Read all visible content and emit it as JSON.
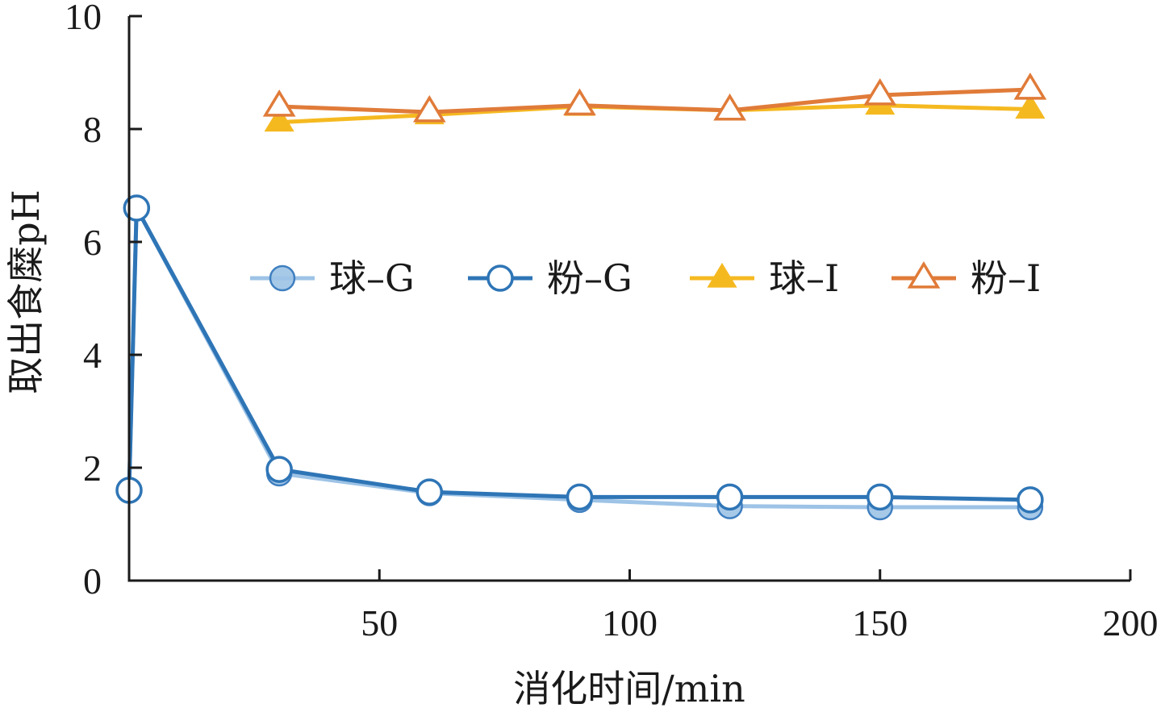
{
  "chart_data": {
    "type": "line",
    "title": "",
    "xlabel": "消化时间/min",
    "ylabel": "取出食糜pH",
    "xlim": [
      0,
      200
    ],
    "ylim": [
      0,
      10
    ],
    "xticks": [
      50,
      100,
      150,
      200
    ],
    "yticks": [
      0,
      2,
      4,
      6,
      8,
      10
    ],
    "grid": false,
    "legend_position": "center",
    "series": [
      {
        "name": "球–G",
        "color": "#9dc3e6",
        "marker": "circle-filled",
        "points": [
          [
            0,
            1.6
          ],
          [
            1.5,
            6.6
          ],
          [
            30,
            1.9
          ],
          [
            60,
            1.55
          ],
          [
            90,
            1.43
          ],
          [
            120,
            1.32
          ],
          [
            150,
            1.3
          ],
          [
            180,
            1.3
          ]
        ]
      },
      {
        "name": "粉–G",
        "color": "#2e75b6",
        "marker": "circle-open",
        "points": [
          [
            0,
            1.6
          ],
          [
            1.5,
            6.6
          ],
          [
            30,
            1.97
          ],
          [
            60,
            1.57
          ],
          [
            90,
            1.48
          ],
          [
            120,
            1.48
          ],
          [
            150,
            1.48
          ],
          [
            180,
            1.43
          ]
        ]
      },
      {
        "name": "球–Ⅰ",
        "color": "#f5b920",
        "marker": "triangle-filled",
        "points": [
          [
            30,
            8.12
          ],
          [
            60,
            8.25
          ],
          [
            90,
            8.4
          ],
          [
            120,
            8.33
          ],
          [
            150,
            8.42
          ],
          [
            180,
            8.35
          ]
        ]
      },
      {
        "name": "粉–Ⅰ",
        "color": "#e07b39",
        "marker": "triangle-open",
        "points": [
          [
            30,
            8.4
          ],
          [
            60,
            8.3
          ],
          [
            90,
            8.42
          ],
          [
            120,
            8.33
          ],
          [
            150,
            8.6
          ],
          [
            180,
            8.7
          ]
        ]
      }
    ]
  }
}
